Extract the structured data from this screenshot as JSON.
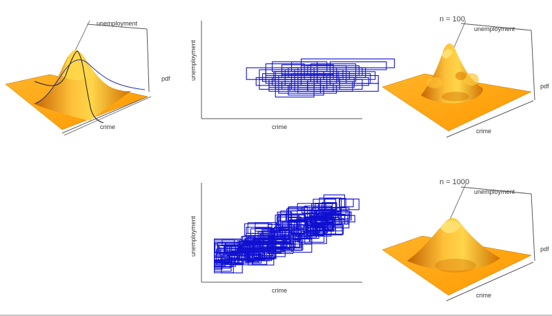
{
  "chart_data": [
    {
      "type": "surface",
      "title": "",
      "xlabel": "crime",
      "ylabel": "unemployment",
      "zlabel": "pdf",
      "description_series": [
        {
          "kind": "marginal-curve",
          "color": "#1a1a1a"
        },
        {
          "kind": "marginal-curve",
          "color": "#1e2a8a"
        }
      ]
    },
    {
      "type": "rectangles",
      "xlabel": "crime",
      "ylabel": "unemployment",
      "sample_size": 100,
      "color": "#1010d0",
      "rects": [
        [
          0.62,
          0.52,
          1.2,
          0.61
        ],
        [
          0.55,
          0.28,
          1.1,
          0.36
        ],
        [
          0.45,
          0.38,
          0.85,
          0.48
        ],
        [
          0.7,
          0.42,
          1.02,
          0.52
        ],
        [
          0.28,
          0.4,
          0.6,
          0.52
        ],
        [
          0.8,
          0.5,
          1.15,
          0.58
        ],
        [
          0.4,
          0.36,
          0.78,
          0.44
        ],
        [
          0.6,
          0.32,
          0.95,
          0.42
        ],
        [
          0.5,
          0.45,
          0.82,
          0.55
        ],
        [
          0.36,
          0.3,
          0.66,
          0.4
        ],
        [
          0.72,
          0.36,
          1.05,
          0.46
        ],
        [
          0.46,
          0.22,
          0.7,
          0.34
        ],
        [
          0.56,
          0.3,
          0.86,
          0.4
        ],
        [
          0.4,
          0.44,
          0.64,
          0.56
        ],
        [
          0.66,
          0.28,
          0.94,
          0.38
        ],
        [
          0.52,
          0.34,
          0.8,
          0.44
        ],
        [
          0.44,
          0.48,
          0.72,
          0.58
        ],
        [
          0.76,
          0.4,
          1.08,
          0.48
        ],
        [
          0.34,
          0.34,
          0.62,
          0.42
        ],
        [
          0.58,
          0.4,
          0.88,
          0.5
        ],
        [
          0.48,
          0.26,
          0.74,
          0.36
        ],
        [
          0.68,
          0.46,
          0.96,
          0.56
        ],
        [
          0.42,
          0.32,
          0.7,
          0.4
        ],
        [
          0.62,
          0.36,
          0.9,
          0.44
        ],
        [
          0.54,
          0.42,
          0.84,
          0.52
        ],
        [
          0.38,
          0.38,
          0.68,
          0.46
        ],
        [
          0.7,
          0.3,
          1.0,
          0.4
        ],
        [
          0.5,
          0.3,
          0.78,
          0.38
        ],
        [
          0.46,
          0.4,
          0.76,
          0.48
        ],
        [
          0.64,
          0.4,
          0.92,
          0.48
        ],
        [
          0.56,
          0.48,
          0.78,
          0.58
        ],
        [
          0.42,
          0.28,
          0.66,
          0.36
        ],
        [
          0.74,
          0.34,
          1.04,
          0.42
        ],
        [
          0.6,
          0.26,
          0.84,
          0.34
        ],
        [
          0.48,
          0.36,
          0.72,
          0.44
        ],
        [
          0.66,
          0.44,
          0.98,
          0.54
        ],
        [
          0.36,
          0.4,
          0.62,
          0.5
        ],
        [
          0.58,
          0.34,
          0.86,
          0.42
        ],
        [
          0.52,
          0.4,
          0.82,
          0.5
        ],
        [
          0.8,
          0.36,
          1.1,
          0.44
        ],
        [
          0.44,
          0.34,
          0.7,
          0.42
        ],
        [
          0.62,
          0.44,
          0.9,
          0.54
        ],
        [
          0.54,
          0.24,
          0.76,
          0.34
        ],
        [
          0.4,
          0.42,
          0.7,
          0.5
        ],
        [
          0.68,
          0.38,
          0.96,
          0.46
        ],
        [
          0.5,
          0.42,
          0.8,
          0.52
        ],
        [
          0.58,
          0.28,
          0.82,
          0.36
        ],
        [
          0.46,
          0.3,
          0.74,
          0.4
        ],
        [
          0.72,
          0.44,
          1.0,
          0.52
        ],
        [
          0.56,
          0.36,
          0.84,
          0.46
        ]
      ]
    },
    {
      "type": "surface",
      "title": "n = 100",
      "xlabel": "crime",
      "ylabel": "unemployment",
      "zlabel": "pdf"
    },
    {
      "type": "rectangles",
      "xlabel": "crime",
      "ylabel": "unemployment",
      "sample_size": 1000,
      "color": "#1010d0",
      "rects": []
    },
    {
      "type": "surface",
      "title": "n = 1000",
      "xlabel": "crime",
      "ylabel": "unemployment",
      "zlabel": "pdf"
    }
  ],
  "colors": {
    "surface_light": "#ffd23a",
    "surface_mid": "#ffa20e",
    "surface_dark": "#c86a00",
    "surface_shadow": "#8a4300",
    "axis": "#444444",
    "rect": "#1010d0"
  }
}
